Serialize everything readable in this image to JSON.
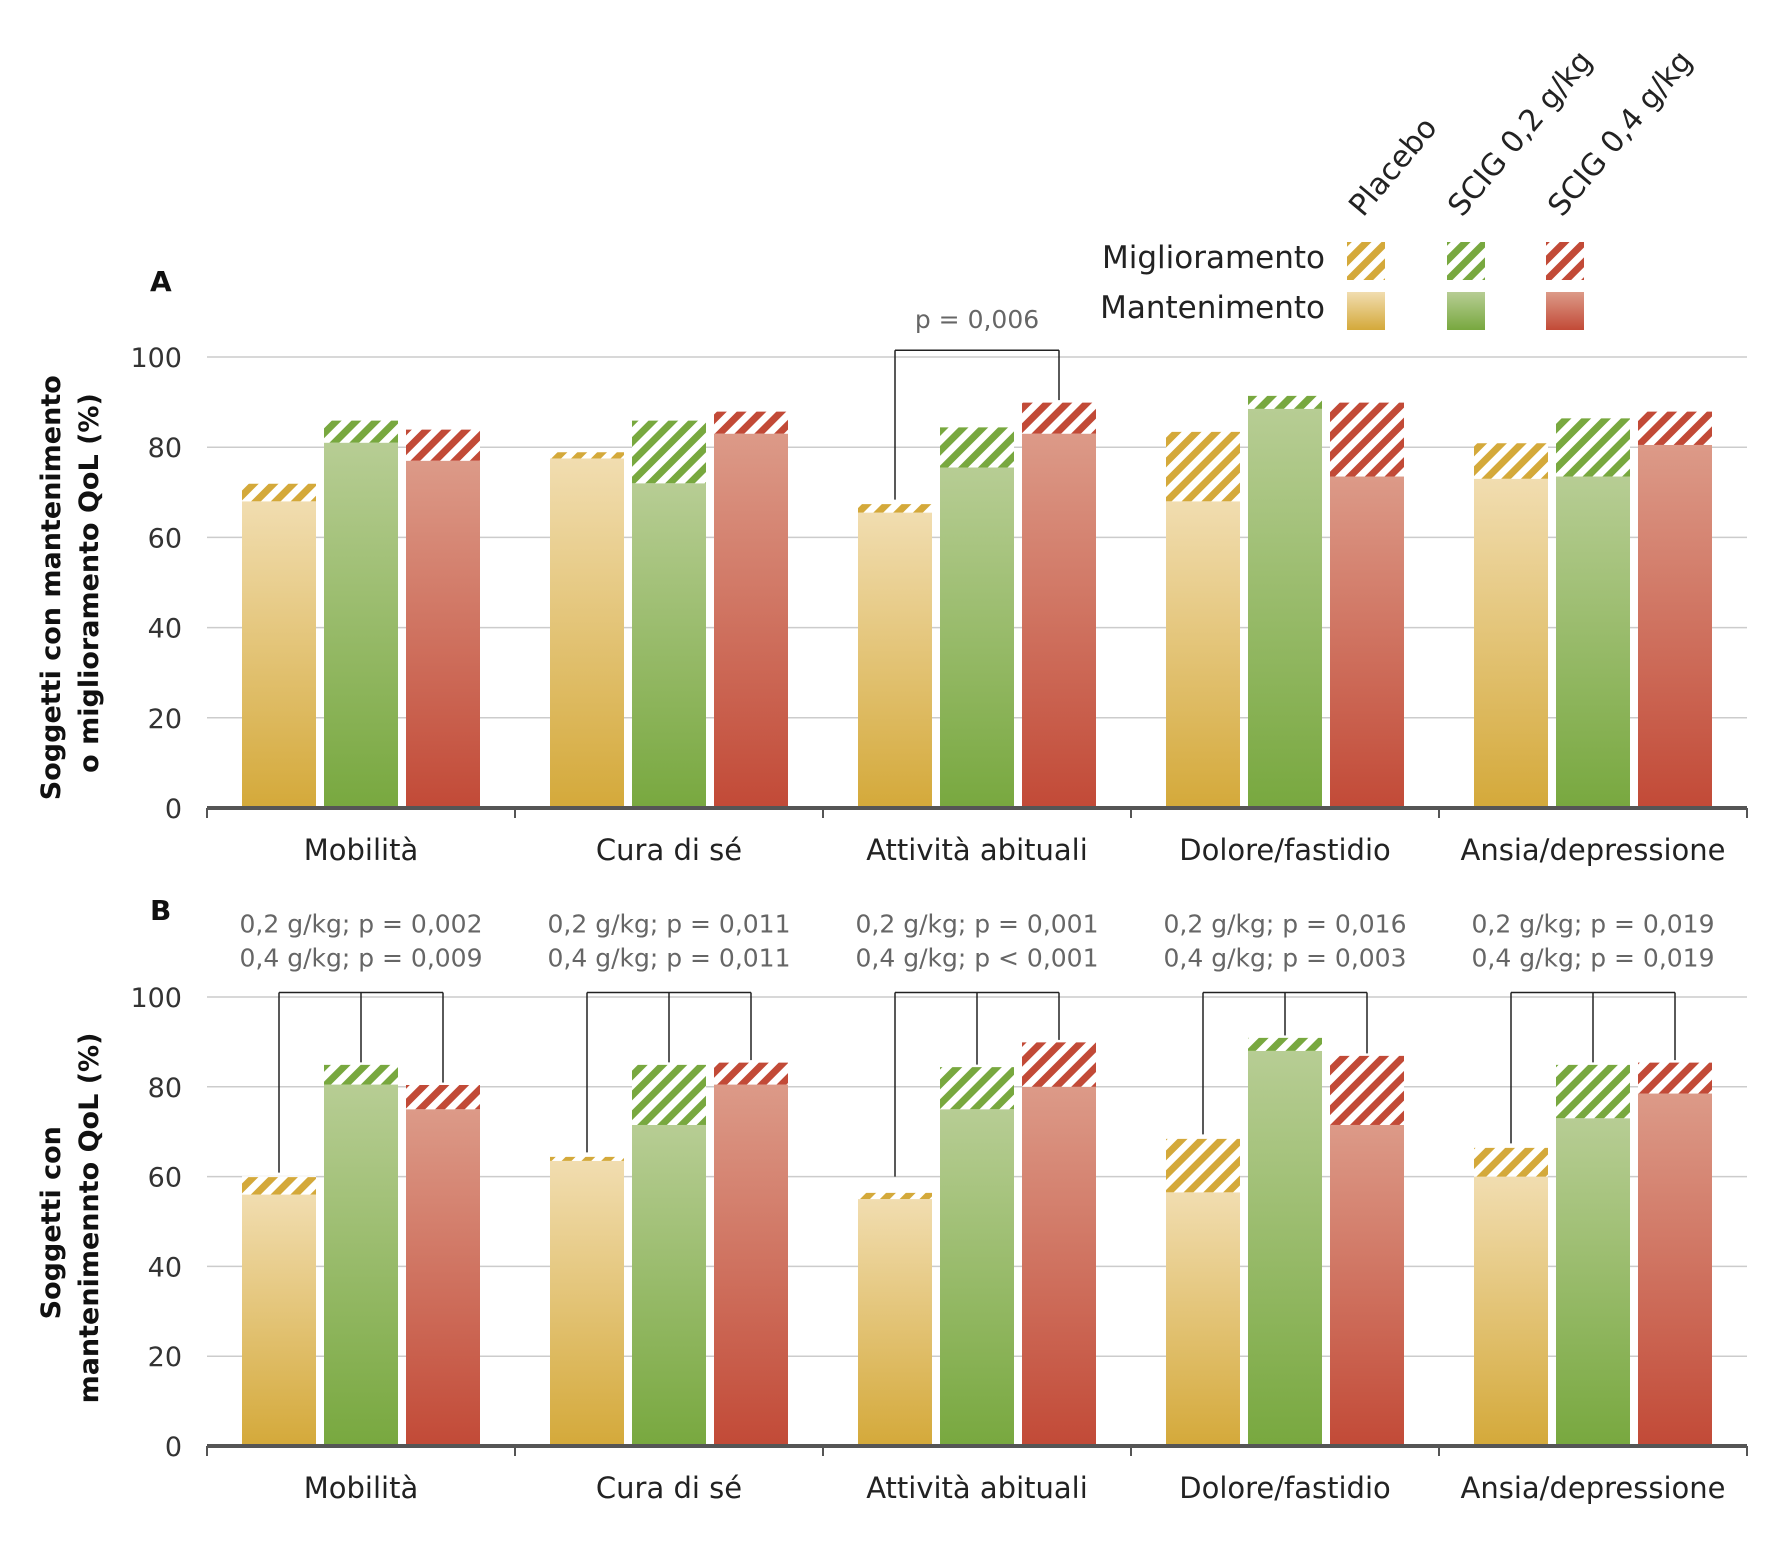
{
  "legend": {
    "groups": [
      {
        "key": "placebo",
        "label": "Placebo"
      },
      {
        "key": "scig02",
        "label": "SCIG 0,2 g/kg"
      },
      {
        "key": "scig04",
        "label": "SCIG 0,4 g/kg"
      }
    ],
    "rows": {
      "improvement": "Miglioramento",
      "maintenance": "Mantenimento"
    }
  },
  "colors": {
    "placebo": {
      "top": "#f1ddb0",
      "bottom": "#d4a93a",
      "hatch": "#d4a93a"
    },
    "scig02": {
      "top": "#b7cd94",
      "bottom": "#78a83f",
      "hatch": "#78a83f"
    },
    "scig04": {
      "top": "#dc9a88",
      "bottom": "#c24a37",
      "hatch": "#c24a37"
    },
    "grid": "#cccccc",
    "axis": "#555555",
    "bracket": "#222222"
  },
  "chart_data": [
    {
      "type": "bar",
      "panel": "A",
      "ylabel_lines": [
        "Soggetti con  mantenimento",
        "o miglioramento QoL (%)"
      ],
      "categories": [
        "Mobilità",
        "Cura di sé",
        "Attività abituali",
        "Dolore/fastidio",
        "Ansia/depressione"
      ],
      "ylim": [
        0,
        100
      ],
      "yticks": [
        0,
        20,
        40,
        60,
        80,
        100
      ],
      "grid": true,
      "series": [
        {
          "key": "placebo",
          "name": "Placebo",
          "maintenance": [
            68,
            77.5,
            65.5,
            68,
            73
          ],
          "total": [
            72,
            79,
            67.5,
            83.5,
            81
          ]
        },
        {
          "key": "scig02",
          "name": "SCIG 0,2 g/kg",
          "maintenance": [
            81,
            72,
            75.5,
            88.5,
            73.5
          ],
          "total": [
            86,
            86,
            84.5,
            91.5,
            86.5
          ]
        },
        {
          "key": "scig04",
          "name": "SCIG 0,4 g/kg",
          "maintenance": [
            77,
            83,
            83,
            73.5,
            80.5
          ],
          "total": [
            84,
            88,
            90,
            90,
            88
          ]
        }
      ],
      "annotations": [
        {
          "category": 2,
          "lines": [
            "p = 0,006"
          ],
          "from": "placebo",
          "to": [
            "scig04"
          ]
        }
      ]
    },
    {
      "type": "bar",
      "panel": "B",
      "ylabel_lines": [
        "Soggetti con",
        "mantenimennto QoL (%)"
      ],
      "categories": [
        "Mobilità",
        "Cura di sé",
        "Attività abituali",
        "Dolore/fastidio",
        "Ansia/depressione"
      ],
      "ylim": [
        0,
        100
      ],
      "yticks": [
        0,
        20,
        40,
        60,
        80,
        100
      ],
      "grid": true,
      "series": [
        {
          "key": "placebo",
          "name": "Placebo",
          "maintenance": [
            56,
            63.5,
            55,
            56.5,
            60
          ],
          "total": [
            60,
            64.5,
            56.5,
            68.5,
            66.5
          ]
        },
        {
          "key": "scig02",
          "name": "SCIG 0,2 g/kg",
          "maintenance": [
            80.5,
            71.5,
            75,
            88,
            73
          ],
          "total": [
            85,
            85,
            84.5,
            91,
            85
          ]
        },
        {
          "key": "scig04",
          "name": "SCIG 0,4 g/kg",
          "maintenance": [
            75,
            80.5,
            80,
            71.5,
            78.5
          ],
          "total": [
            80.5,
            85.5,
            90,
            87,
            85.5
          ]
        }
      ],
      "annotations": [
        {
          "category": 0,
          "lines": [
            "0,2 g/kg; p = 0,002",
            "0,4 g/kg; p = 0,009"
          ],
          "from": "placebo",
          "to": [
            "scig02",
            "scig04"
          ]
        },
        {
          "category": 1,
          "lines": [
            "0,2 g/kg; p = 0,011",
            "0,4 g/kg; p = 0,011"
          ],
          "from": "placebo",
          "to": [
            "scig02",
            "scig04"
          ]
        },
        {
          "category": 2,
          "lines": [
            "0,2 g/kg; p = 0,001",
            "0,4 g/kg; p < 0,001"
          ],
          "from": "placebo",
          "to": [
            "scig02",
            "scig04"
          ]
        },
        {
          "category": 3,
          "lines": [
            "0,2 g/kg; p = 0,016",
            "0,4 g/kg; p = 0,003"
          ],
          "from": "placebo",
          "to": [
            "scig02",
            "scig04"
          ]
        },
        {
          "category": 4,
          "lines": [
            "0,2 g/kg; p = 0,019",
            "0,4 g/kg; p = 0,019"
          ],
          "from": "placebo",
          "to": [
            "scig02",
            "scig04"
          ]
        }
      ]
    }
  ]
}
